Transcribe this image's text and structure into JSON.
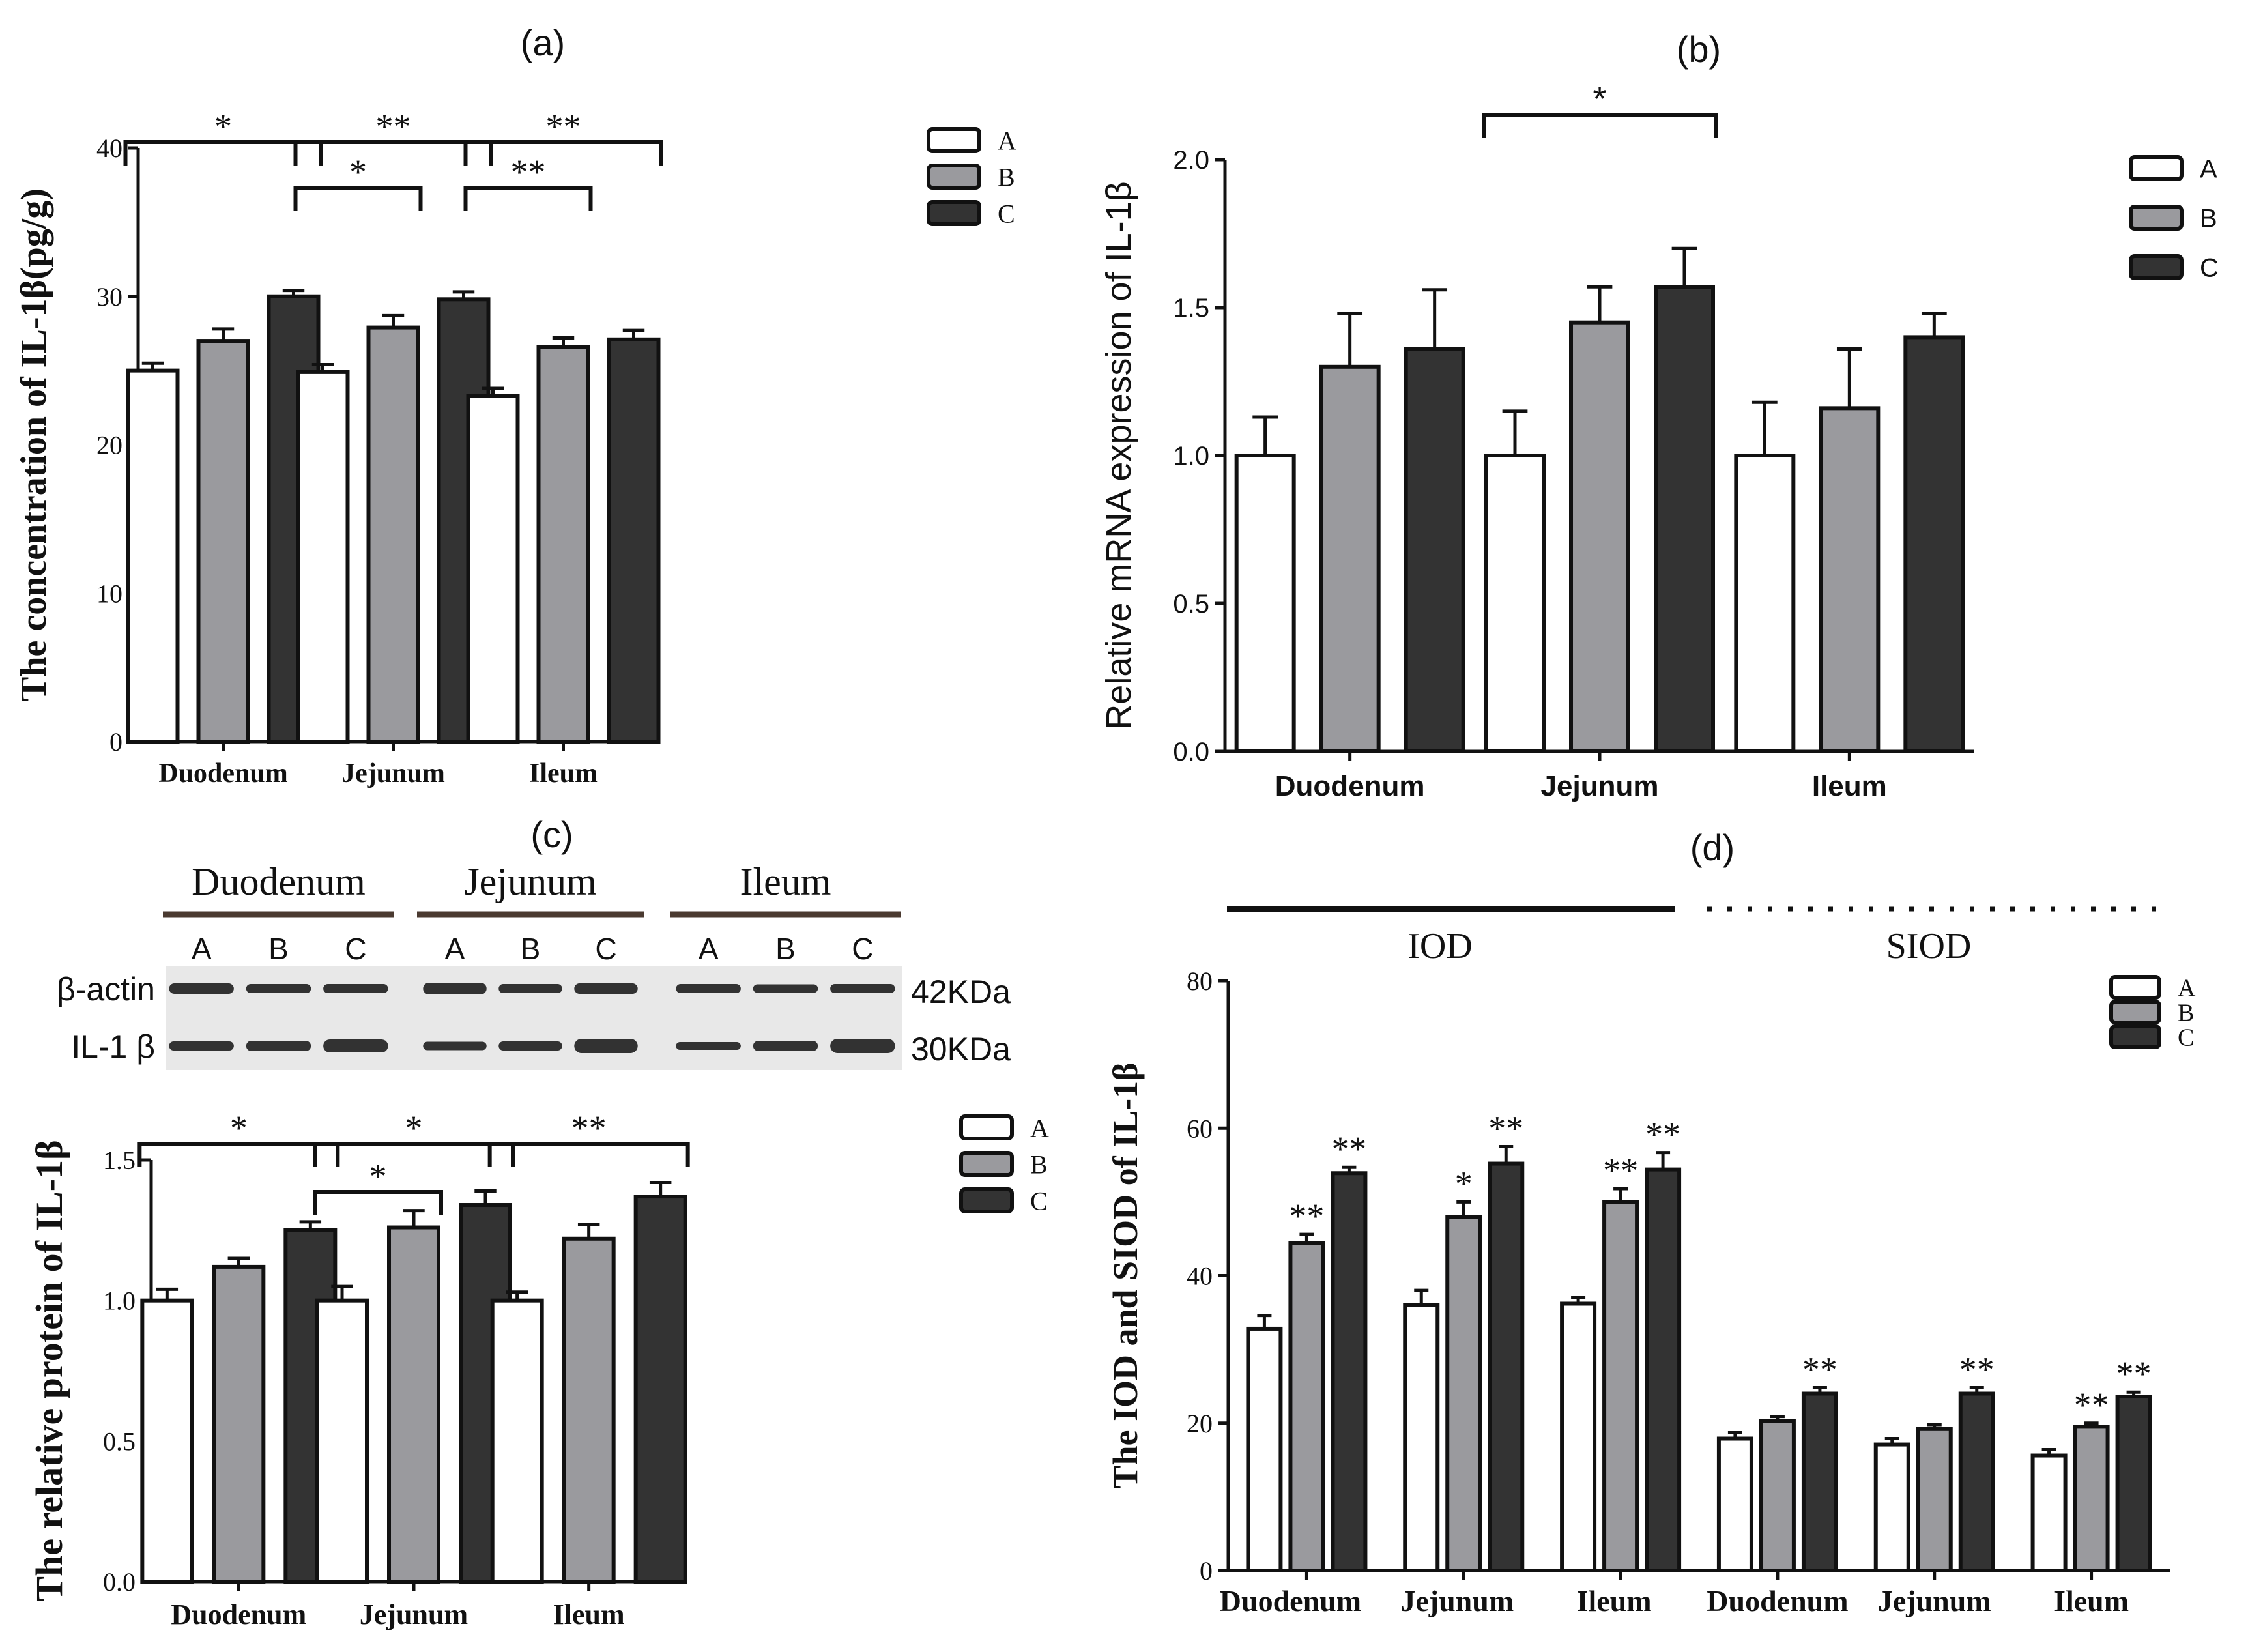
{
  "colors": {
    "A": "#ffffff",
    "B": "#9a9a9e",
    "C": "#333333",
    "B_light": "#8a8a8a",
    "C_light": "#2e2e2e",
    "axis": "#111111"
  },
  "legend_labels": [
    "A",
    "B",
    "C"
  ],
  "chart_data": [
    {
      "id": "a",
      "panel_label": "(a)",
      "type": "bar",
      "categories": [
        "Duodenum",
        "Jejunum",
        "Ileum"
      ],
      "series": [
        {
          "name": "A",
          "values": [
            25.0,
            24.9,
            23.3
          ],
          "errors": [
            0.5,
            0.5,
            0.5
          ]
        },
        {
          "name": "B",
          "values": [
            27.0,
            27.9,
            26.6
          ],
          "errors": [
            0.8,
            0.8,
            0.6
          ]
        },
        {
          "name": "C",
          "values": [
            30.0,
            29.8,
            27.1
          ],
          "errors": [
            0.4,
            0.5,
            0.6
          ]
        }
      ],
      "ylabel": "The concentration of IL-1β(pg/g)",
      "xlabel": "",
      "ylim": [
        0,
        40
      ],
      "yticks": [
        0,
        10,
        20,
        30,
        40
      ],
      "ytick_labels": [
        "0",
        "10",
        "20",
        "30",
        "40"
      ],
      "significance": [
        {
          "group": 0,
          "from": "A",
          "to": "C",
          "label": "*",
          "level": 0
        },
        {
          "group": 1,
          "from": "A",
          "to": "C",
          "label": "**",
          "level": 0
        },
        {
          "group": 1,
          "from": "A",
          "to": "B",
          "label": "*",
          "level": 1
        },
        {
          "group": 2,
          "from": "A",
          "to": "C",
          "label": "**",
          "level": 0
        },
        {
          "group": 2,
          "from": "A",
          "to": "B",
          "label": "**",
          "level": 1
        }
      ],
      "legend": "top-right"
    },
    {
      "id": "b",
      "panel_label": "(b)",
      "type": "bar",
      "categories": [
        "Duodenum",
        "Jejunum",
        "Ileum"
      ],
      "series": [
        {
          "name": "A",
          "values": [
            1.0,
            1.0,
            1.0
          ],
          "errors": [
            0.13,
            0.15,
            0.18
          ]
        },
        {
          "name": "B",
          "values": [
            1.3,
            1.45,
            1.16
          ],
          "errors": [
            0.18,
            0.12,
            0.2
          ]
        },
        {
          "name": "C",
          "values": [
            1.36,
            1.57,
            1.4
          ],
          "errors": [
            0.2,
            0.13,
            0.08
          ]
        }
      ],
      "ylabel": "Relative mRNA expression of IL-1β",
      "xlabel": "",
      "ylim": [
        0,
        2.0
      ],
      "yticks": [
        0,
        0.5,
        1.0,
        1.5,
        2.0
      ],
      "ytick_labels": [
        "0.0",
        "0.5",
        "1.0",
        "1.5",
        "2.0"
      ],
      "significance": [
        {
          "group": 1,
          "from": "A",
          "to": "C",
          "label": "*",
          "level": 0
        }
      ],
      "legend": "top-right"
    },
    {
      "id": "c",
      "panel_label": "(c)",
      "type": "bar",
      "categories": [
        "Duodenum",
        "Jejunum",
        "Ileum"
      ],
      "series": [
        {
          "name": "A",
          "values": [
            1.0,
            1.0,
            1.0
          ],
          "errors": [
            0.04,
            0.05,
            0.03
          ]
        },
        {
          "name": "B",
          "values": [
            1.12,
            1.26,
            1.22
          ],
          "errors": [
            0.03,
            0.06,
            0.05
          ]
        },
        {
          "name": "C",
          "values": [
            1.25,
            1.34,
            1.37
          ],
          "errors": [
            0.03,
            0.05,
            0.05
          ]
        }
      ],
      "ylabel": "The relative protein of IL-1β",
      "xlabel": "",
      "ylim": [
        0,
        1.5
      ],
      "yticks": [
        0,
        0.5,
        1.0,
        1.5
      ],
      "ytick_labels": [
        "0.0",
        "0.5",
        "1.0",
        "1.5"
      ],
      "significance": [
        {
          "group": 0,
          "from": "A",
          "to": "C",
          "label": "*",
          "level": 0
        },
        {
          "group": 1,
          "from": "A",
          "to": "C",
          "label": "*",
          "level": 0
        },
        {
          "group": 1,
          "from": "A",
          "to": "B",
          "label": "*",
          "level": 1
        },
        {
          "group": 2,
          "from": "A",
          "to": "C",
          "label": "**",
          "level": 0
        }
      ],
      "legend": "top-right"
    },
    {
      "id": "d",
      "panel_label": "(d)",
      "type": "bar",
      "categories": [
        "Duodenum",
        "Jejunum",
        "Ileum",
        "Duodenum",
        "Jejunum",
        "Ileum"
      ],
      "section_labels": [
        "IOD",
        "SIOD"
      ],
      "series": [
        {
          "name": "A",
          "values": [
            32.8,
            36.0,
            36.2,
            17.9,
            17.1,
            15.6
          ],
          "errors": [
            1.8,
            2.0,
            0.8,
            0.8,
            0.8,
            0.8
          ]
        },
        {
          "name": "B",
          "values": [
            44.4,
            48.0,
            50.0,
            20.3,
            19.2,
            19.5
          ],
          "errors": [
            1.2,
            2.0,
            1.8,
            0.6,
            0.6,
            0.5
          ]
        },
        {
          "name": "C",
          "values": [
            53.9,
            55.2,
            54.4,
            24.0,
            24.0,
            23.6
          ],
          "errors": [
            0.8,
            2.3,
            2.3,
            0.8,
            0.8,
            0.6
          ]
        }
      ],
      "markers": [
        [
          "",
          "**",
          "**"
        ],
        [
          "",
          "*",
          "**"
        ],
        [
          "",
          "**",
          "**"
        ],
        [
          "",
          "",
          "**"
        ],
        [
          "",
          "",
          "**"
        ],
        [
          "",
          "**",
          "**"
        ]
      ],
      "ylabel": "The IOD and SIOD of IL-1β",
      "xlabel": "",
      "ylim": [
        0,
        80
      ],
      "yticks": [
        0,
        20,
        40,
        60,
        80
      ],
      "ytick_labels": [
        "0",
        "20",
        "40",
        "60",
        "80"
      ],
      "legend": "top-right"
    }
  ],
  "blot": {
    "regions": [
      "Duodenum",
      "Jejunum",
      "Ileum"
    ],
    "lane_labels": [
      "A",
      "B",
      "C"
    ],
    "rows": [
      {
        "label": "β-actin",
        "size": "42KDa"
      },
      {
        "label": "IL-1 β",
        "size": "30KDa"
      }
    ]
  }
}
